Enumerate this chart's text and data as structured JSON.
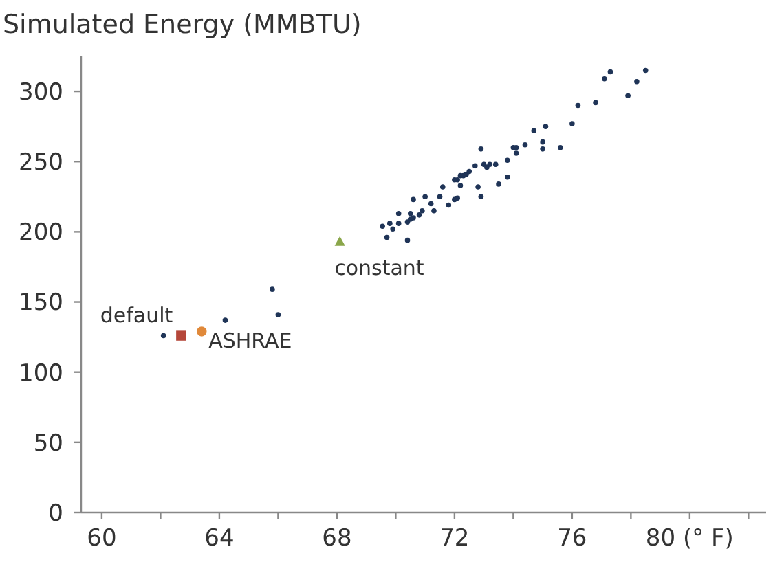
{
  "chart_data": {
    "type": "scatter",
    "ylabel": "Simulated Energy (MMBTU)",
    "xlim": [
      59.3,
      82.6
    ],
    "ylim": [
      0,
      325
    ],
    "xticks": [
      60,
      {
        "value": 62,
        "label": null
      },
      64,
      {
        "value": 66,
        "label": null
      },
      68,
      {
        "value": 70,
        "label": null
      },
      72,
      {
        "value": 74,
        "label": null
      },
      76,
      {
        "value": 78,
        "label": null
      },
      {
        "value": 80,
        "label": "80 (° F)"
      },
      {
        "value": 82,
        "label": null
      }
    ],
    "yticks": [
      0,
      50,
      100,
      150,
      200,
      250,
      300
    ],
    "grid": false,
    "series": [
      {
        "color": "#1f3457",
        "marker": "circle",
        "x": [
          62.1,
          64.2,
          65.8,
          66.0,
          69.55,
          69.7,
          69.8,
          69.9,
          70.1,
          70.1,
          70.4,
          70.4,
          70.5,
          70.5,
          70.6,
          70.6,
          70.8,
          70.9,
          71.0,
          71.2,
          71.3,
          71.5,
          71.6,
          71.8,
          72.0,
          72.0,
          72.1,
          72.1,
          72.2,
          72.2,
          72.3,
          72.4,
          72.5,
          72.7,
          72.8,
          72.9,
          72.9,
          73.0,
          73.1,
          73.2,
          73.4,
          73.5,
          73.8,
          73.8,
          74.0,
          74.1,
          74.1,
          74.4,
          74.7,
          75.0,
          75.0,
          75.1,
          75.6,
          76.0,
          76.2,
          76.8,
          77.1,
          77.3,
          77.9,
          78.2,
          78.5
        ],
        "values": [
          126,
          137,
          159,
          141,
          204,
          196,
          206,
          202,
          213,
          206,
          194,
          207,
          209,
          213,
          223,
          210,
          212,
          215,
          225,
          220,
          215,
          225,
          232,
          219,
          237,
          223,
          224,
          237,
          240,
          233,
          240,
          241,
          243,
          247,
          232,
          259,
          225,
          248,
          246,
          248,
          248,
          234,
          239,
          251,
          260,
          256,
          260,
          262,
          272,
          264,
          259,
          275,
          260,
          277,
          290,
          292,
          309,
          314,
          297,
          307,
          315
        ]
      },
      {
        "name": "default",
        "type": "scatter",
        "color": "#b5473a",
        "marker": "square",
        "x": [
          62.7
        ],
        "values": [
          126
        ]
      },
      {
        "name": "ASHRAE",
        "type": "scatter",
        "color": "#e0893a",
        "marker": "circle",
        "x": [
          63.4
        ],
        "values": [
          129
        ]
      },
      {
        "name": "constant",
        "type": "scatter",
        "color": "#8aa64a",
        "marker": "triangle",
        "x": [
          68.1
        ],
        "values": [
          193
        ]
      }
    ]
  }
}
